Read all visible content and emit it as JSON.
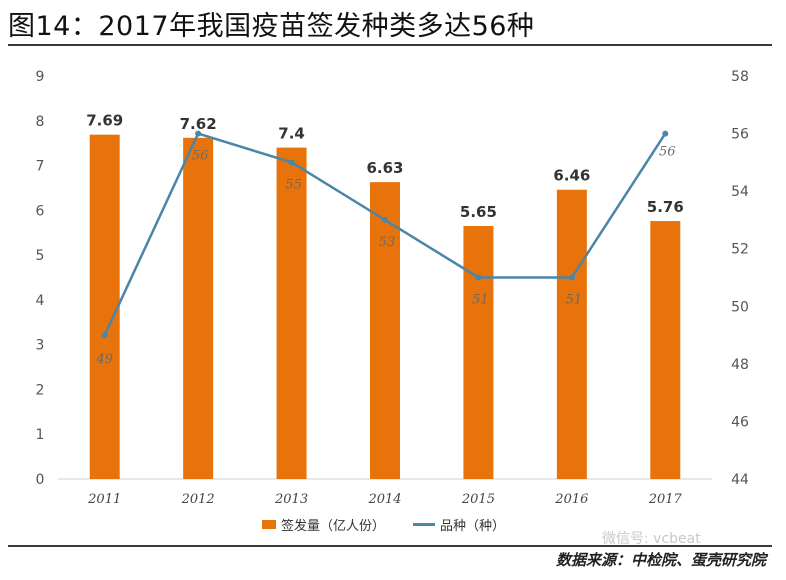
{
  "title": "图14：2017年我国疫苗签发种类多达56种",
  "source": "数据来源：中检院、蛋壳研究院",
  "watermark": "微信号: vcbeat",
  "colors": {
    "bar": "#E8730A",
    "line": "#4A86A8",
    "axis": "#d0d0d0",
    "text": "#555555"
  },
  "chart_data": {
    "type": "bar+line",
    "categories": [
      "2011",
      "2012",
      "2013",
      "2014",
      "2015",
      "2016",
      "2017"
    ],
    "series": [
      {
        "name": "签发量（亿人份）",
        "type": "bar",
        "axis": "left",
        "values": [
          7.69,
          7.62,
          7.4,
          6.63,
          5.65,
          6.46,
          5.76
        ],
        "labels": [
          "7.69",
          "7.62",
          "7.4",
          "6.63",
          "5.65",
          "6.46",
          "5.76"
        ]
      },
      {
        "name": "品种（种）",
        "type": "line",
        "axis": "right",
        "values": [
          49,
          56,
          55,
          53,
          51,
          51,
          56
        ],
        "labels": [
          "49",
          "56",
          "55",
          "53",
          "51",
          "51",
          "56"
        ]
      }
    ],
    "y_left": {
      "min": 0,
      "max": 9,
      "ticks": [
        "0",
        "1",
        "2",
        "3",
        "4",
        "5",
        "6",
        "7",
        "8",
        "9"
      ]
    },
    "y_right": {
      "min": 44,
      "max": 58,
      "ticks": [
        "44",
        "46",
        "48",
        "50",
        "52",
        "54",
        "56",
        "58"
      ]
    },
    "legend": "bottom-center"
  }
}
